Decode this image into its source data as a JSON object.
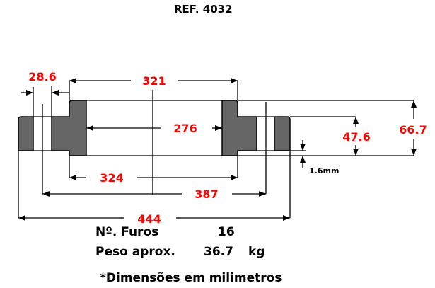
{
  "title": "REF. 4032",
  "colors": {
    "dimension_text": "#ff0000",
    "section_fill": "#666666",
    "line": "#000000"
  },
  "dimensions": {
    "raised_face_diameter": "321",
    "bore": "276",
    "hub_diameter": "324",
    "bolt_circle": "387",
    "outside_diameter": "444",
    "hole_diameter": "28.6",
    "flange_thickness": "47.6",
    "total_height": "66.7",
    "raised_face_height": "1.6mm"
  },
  "specs": {
    "holes_label": "Nº. Furos",
    "holes_value": "16",
    "weight_label": "Peso aprox.",
    "weight_value": "36.7",
    "weight_unit": "kg"
  },
  "note": "*Dimensões em milimetros"
}
